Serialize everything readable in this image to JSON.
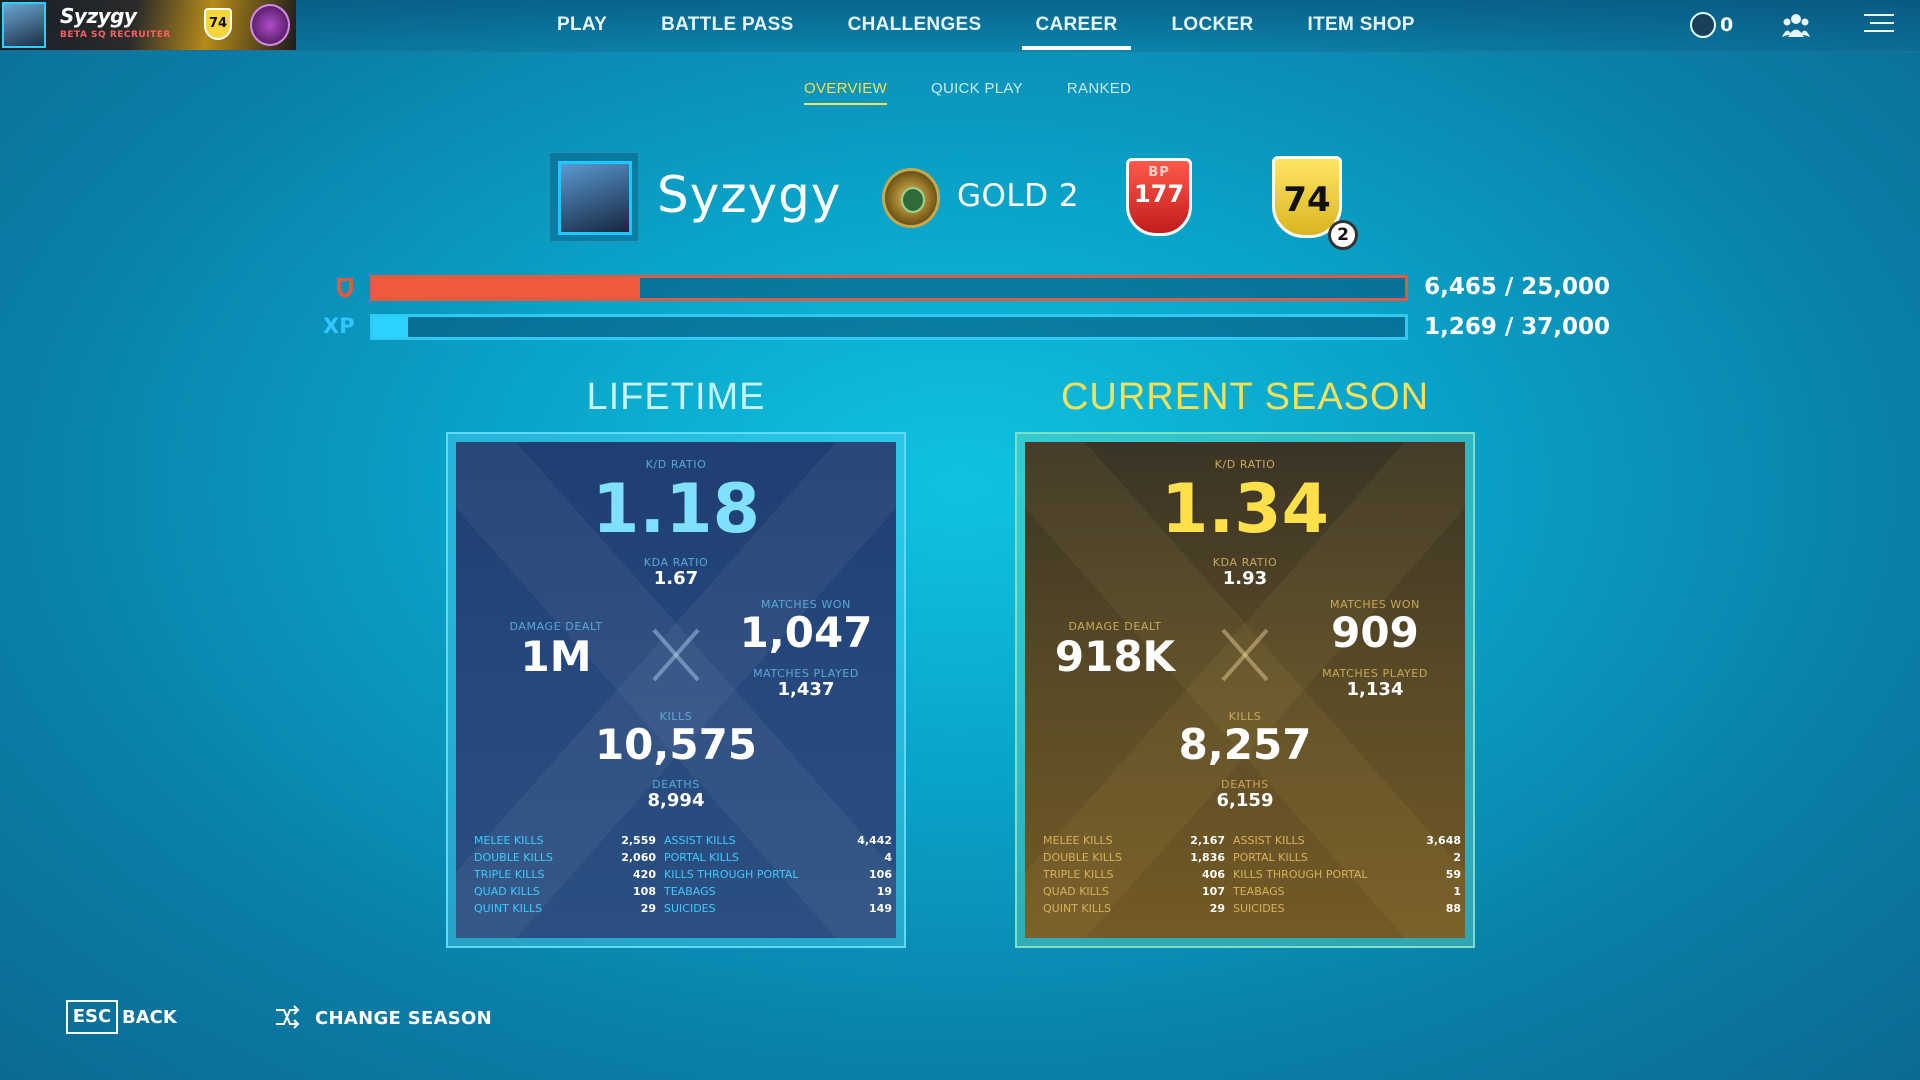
{
  "player_card": {
    "name": "Syzygy",
    "subtitle": "BETA SQ RECRUITER",
    "level": "74"
  },
  "nav": {
    "items": [
      "PLAY",
      "BATTLE PASS",
      "CHALLENGES",
      "CAREER",
      "LOCKER",
      "ITEM SHOP"
    ],
    "active": "CAREER"
  },
  "currency": {
    "value": "0"
  },
  "subtabs": {
    "items": [
      "OVERVIEW",
      "QUICK PLAY",
      "RANKED"
    ],
    "active": "OVERVIEW"
  },
  "header": {
    "player_name": "Syzygy",
    "rank": "GOLD 2",
    "bp_label": "BP",
    "bp_level": "177",
    "account_level": "74",
    "prestige": "2"
  },
  "progress": {
    "bp": {
      "text": "6,465 / 25,000",
      "current": 6465,
      "max": 25000
    },
    "xp": {
      "label": "XP",
      "text": "1,269 / 37,000",
      "current": 1269,
      "max": 37000
    }
  },
  "lifetime": {
    "title": "LIFETIME",
    "kd_label": "K/D RATIO",
    "kd": "1.18",
    "kda_label": "KDA RATIO",
    "kda": "1.67",
    "damage_label": "DAMAGE DEALT",
    "damage": "1M",
    "won_label": "MATCHES WON",
    "won": "1,047",
    "played_label": "MATCHES PLAYED",
    "played": "1,437",
    "kills_label": "KILLS",
    "kills": "10,575",
    "deaths_label": "DEATHS",
    "deaths": "8,994",
    "rows": [
      {
        "l1": "MELEE KILLS",
        "v1": "2,559",
        "l2": "ASSIST KILLS",
        "v2": "4,442"
      },
      {
        "l1": "DOUBLE KILLS",
        "v1": "2,060",
        "l2": "PORTAL KILLS",
        "v2": "4"
      },
      {
        "l1": "TRIPLE KILLS",
        "v1": "420",
        "l2": "KILLS THROUGH PORTAL",
        "v2": "106"
      },
      {
        "l1": "QUAD KILLS",
        "v1": "108",
        "l2": "TEABAGS",
        "v2": "19"
      },
      {
        "l1": "QUINT KILLS",
        "v1": "29",
        "l2": "SUICIDES",
        "v2": "149"
      }
    ]
  },
  "season": {
    "title": "CURRENT SEASON",
    "kd_label": "K/D RATIO",
    "kd": "1.34",
    "kda_label": "KDA RATIO",
    "kda": "1.93",
    "damage_label": "DAMAGE DEALT",
    "damage": "918K",
    "won_label": "MATCHES WON",
    "won": "909",
    "played_label": "MATCHES PLAYED",
    "played": "1,134",
    "kills_label": "KILLS",
    "kills": "8,257",
    "deaths_label": "DEATHS",
    "deaths": "6,159",
    "rows": [
      {
        "l1": "MELEE KILLS",
        "v1": "2,167",
        "l2": "ASSIST KILLS",
        "v2": "3,648"
      },
      {
        "l1": "DOUBLE KILLS",
        "v1": "1,836",
        "l2": "PORTAL KILLS",
        "v2": "2"
      },
      {
        "l1": "TRIPLE KILLS",
        "v1": "406",
        "l2": "KILLS THROUGH PORTAL",
        "v2": "59"
      },
      {
        "l1": "QUAD KILLS",
        "v1": "107",
        "l2": "TEABAGS",
        "v2": "1"
      },
      {
        "l1": "QUINT KILLS",
        "v1": "29",
        "l2": "SUICIDES",
        "v2": "88"
      }
    ]
  },
  "footer": {
    "esc_key": "ESC",
    "back_label": "BACK",
    "change_season_label": "CHANGE SEASON"
  },
  "colors": {
    "lifetime_title": "#c8f2ff",
    "season_title": "#f6e05a"
  }
}
